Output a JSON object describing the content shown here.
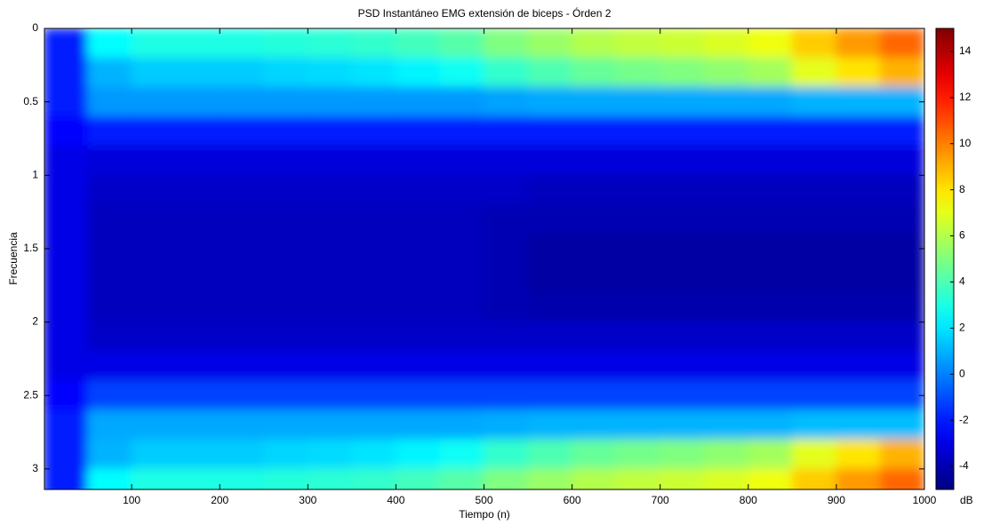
{
  "chart_data": {
    "type": "heatmap",
    "title": "PSD Instantáneo EMG extensión de biceps - Órden 2",
    "xlabel": "Tiempo (n)",
    "ylabel": "Frecuencia",
    "colorbar_label": "dB",
    "colormap": "jet",
    "xlim": [
      1,
      1000
    ],
    "xticks": [
      100,
      200,
      300,
      400,
      500,
      600,
      700,
      800,
      900,
      1000
    ],
    "ylim": [
      0,
      3.14
    ],
    "y_reversed": true,
    "yticks": [
      0,
      0.5,
      1,
      1.5,
      2,
      2.5,
      3
    ],
    "clim": [
      -5,
      15
    ],
    "cticks": [
      -4,
      -2,
      0,
      2,
      4,
      6,
      8,
      10,
      12,
      14
    ],
    "x": [
      25,
      75,
      125,
      175,
      225,
      275,
      325,
      375,
      425,
      475,
      525,
      575,
      625,
      675,
      725,
      775,
      825,
      875,
      925,
      975
    ],
    "y": [
      0.1,
      0.3,
      0.5,
      0.7,
      0.9,
      1.1,
      1.3,
      1.5,
      1.7,
      1.9,
      2.1,
      2.3,
      2.5,
      2.7,
      2.9,
      3.1
    ],
    "z": [
      [
        -2,
        2.5,
        3,
        3,
        3,
        3.2,
        3.3,
        3.5,
        3.8,
        4.2,
        5,
        5.5,
        6,
        6.3,
        6.5,
        6.8,
        7.2,
        8.5,
        9.5,
        10.5
      ],
      [
        -2,
        1,
        1.5,
        1.5,
        1.5,
        1.7,
        1.8,
        2,
        2.3,
        2.7,
        3.5,
        4,
        4.5,
        4.8,
        5,
        5.3,
        5.7,
        7,
        8,
        9
      ],
      [
        -2,
        0.5,
        0.5,
        0.5,
        0.5,
        0.5,
        0.5,
        0.5,
        0.5,
        0.5,
        0.7,
        0.8,
        0.8,
        0.8,
        0.8,
        0.8,
        0.8,
        1,
        1,
        1
      ],
      [
        -2.5,
        -2,
        -2,
        -2,
        -2,
        -2,
        -2,
        -2,
        -2,
        -2,
        -2,
        -2,
        -2,
        -2,
        -2,
        -2,
        -2,
        -2,
        -2,
        -2
      ],
      [
        -3,
        -3.2,
        -3.2,
        -3.2,
        -3.2,
        -3.2,
        -3.2,
        -3.2,
        -3.2,
        -3.2,
        -3.2,
        -3.2,
        -3.2,
        -3.2,
        -3.2,
        -3.2,
        -3.2,
        -3.2,
        -3.2,
        -3.2
      ],
      [
        -3,
        -3.6,
        -3.6,
        -3.6,
        -3.6,
        -3.6,
        -3.6,
        -3.6,
        -3.6,
        -3.6,
        -3.6,
        -3.8,
        -3.8,
        -3.8,
        -3.8,
        -3.8,
        -3.8,
        -3.8,
        -3.8,
        -3.8
      ],
      [
        -3,
        -3.8,
        -3.8,
        -3.8,
        -3.8,
        -3.8,
        -3.8,
        -3.8,
        -3.8,
        -3.8,
        -4,
        -4,
        -4,
        -4,
        -4,
        -4,
        -4,
        -4,
        -4,
        -4
      ],
      [
        -3,
        -3.8,
        -3.8,
        -3.8,
        -3.8,
        -3.8,
        -3.8,
        -3.8,
        -3.8,
        -3.8,
        -4,
        -4.3,
        -4.3,
        -4.3,
        -4.3,
        -4.3,
        -4.3,
        -4.3,
        -4.3,
        -4.3
      ],
      [
        -3,
        -3.8,
        -3.8,
        -3.8,
        -3.8,
        -3.8,
        -3.8,
        -3.8,
        -3.8,
        -3.8,
        -4,
        -4.3,
        -4.3,
        -4.3,
        -4.3,
        -4.3,
        -4.3,
        -4.3,
        -4.3,
        -4.3
      ],
      [
        -3,
        -3.8,
        -3.8,
        -3.8,
        -3.8,
        -3.8,
        -3.8,
        -3.8,
        -3.8,
        -3.8,
        -4,
        -4.1,
        -4.1,
        -4.1,
        -4.1,
        -4.1,
        -4.1,
        -4.1,
        -4.1,
        -4.1
      ],
      [
        -3,
        -3.6,
        -3.6,
        -3.6,
        -3.6,
        -3.6,
        -3.6,
        -3.6,
        -3.6,
        -3.6,
        -3.6,
        -3.6,
        -3.6,
        -3.6,
        -3.6,
        -3.6,
        -3.6,
        -3.6,
        -3.6,
        -3.6
      ],
      [
        -3,
        -3,
        -3,
        -3,
        -3,
        -3,
        -3,
        -3,
        -3,
        -3,
        -3,
        -3,
        -3,
        -3,
        -3,
        -3,
        -3,
        -3,
        -3,
        -3
      ],
      [
        -2.5,
        -1.2,
        -1.2,
        -1.2,
        -1.2,
        -1.2,
        -1.2,
        -1.2,
        -1.2,
        -1.2,
        -1.2,
        -1.2,
        -1.2,
        -1.2,
        -1.2,
        -1.2,
        -1.2,
        -1.2,
        -1.2,
        -1.2
      ],
      [
        -2,
        0.8,
        0.8,
        0.8,
        0.8,
        0.8,
        0.8,
        0.8,
        0.8,
        0.8,
        0.9,
        1,
        1,
        1,
        1,
        1,
        1,
        1.2,
        1.2,
        1.2
      ],
      [
        -2,
        1,
        1.5,
        1.5,
        1.5,
        1.7,
        1.8,
        2,
        2.3,
        2.7,
        3.5,
        4,
        4.5,
        4.8,
        5,
        5.3,
        5.7,
        7,
        8,
        9
      ],
      [
        -2,
        2.5,
        3,
        3,
        3,
        3.2,
        3.3,
        3.5,
        3.8,
        4.2,
        5,
        5.5,
        6,
        6.3,
        6.5,
        6.8,
        7.2,
        8.5,
        9.5,
        10.5
      ]
    ]
  }
}
